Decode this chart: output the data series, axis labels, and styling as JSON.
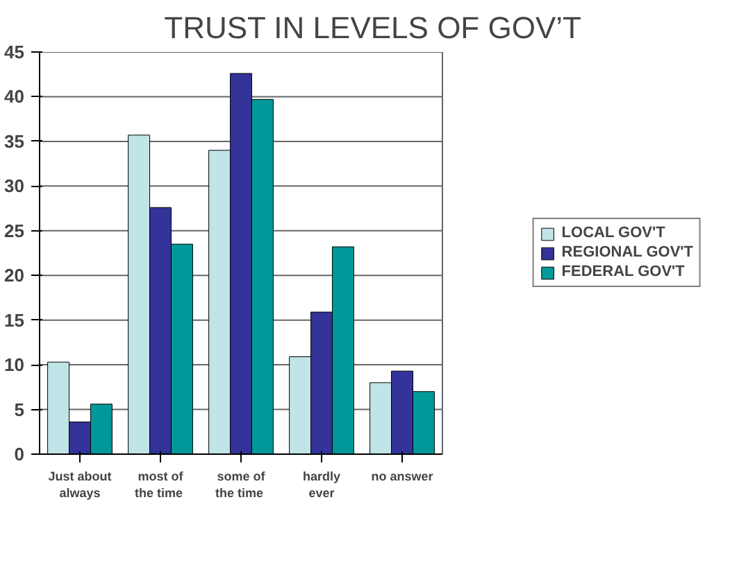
{
  "chart_data": {
    "type": "bar",
    "title": "TRUST IN LEVELS OF GOV’T",
    "categories": [
      "Just about always",
      "most of the time",
      "some of the time",
      "hardly ever",
      "no answer"
    ],
    "series": [
      {
        "name": "LOCAL GOV'T",
        "color": "#c0e4e8",
        "values": [
          10.3,
          35.7,
          34,
          10.9,
          8
        ]
      },
      {
        "name": "REGIONAL GOV'T",
        "color": "#333399",
        "values": [
          3.6,
          27.6,
          42.6,
          15.9,
          9.3
        ]
      },
      {
        "name": "FEDERAL GOV'T",
        "color": "#009999",
        "values": [
          5.6,
          23.5,
          39.7,
          23.2,
          7
        ]
      }
    ],
    "ylim": [
      0,
      45
    ],
    "yticks": [
      0,
      5,
      10,
      15,
      20,
      25,
      30,
      35,
      40,
      45
    ],
    "grid": "y",
    "legend": "right"
  }
}
